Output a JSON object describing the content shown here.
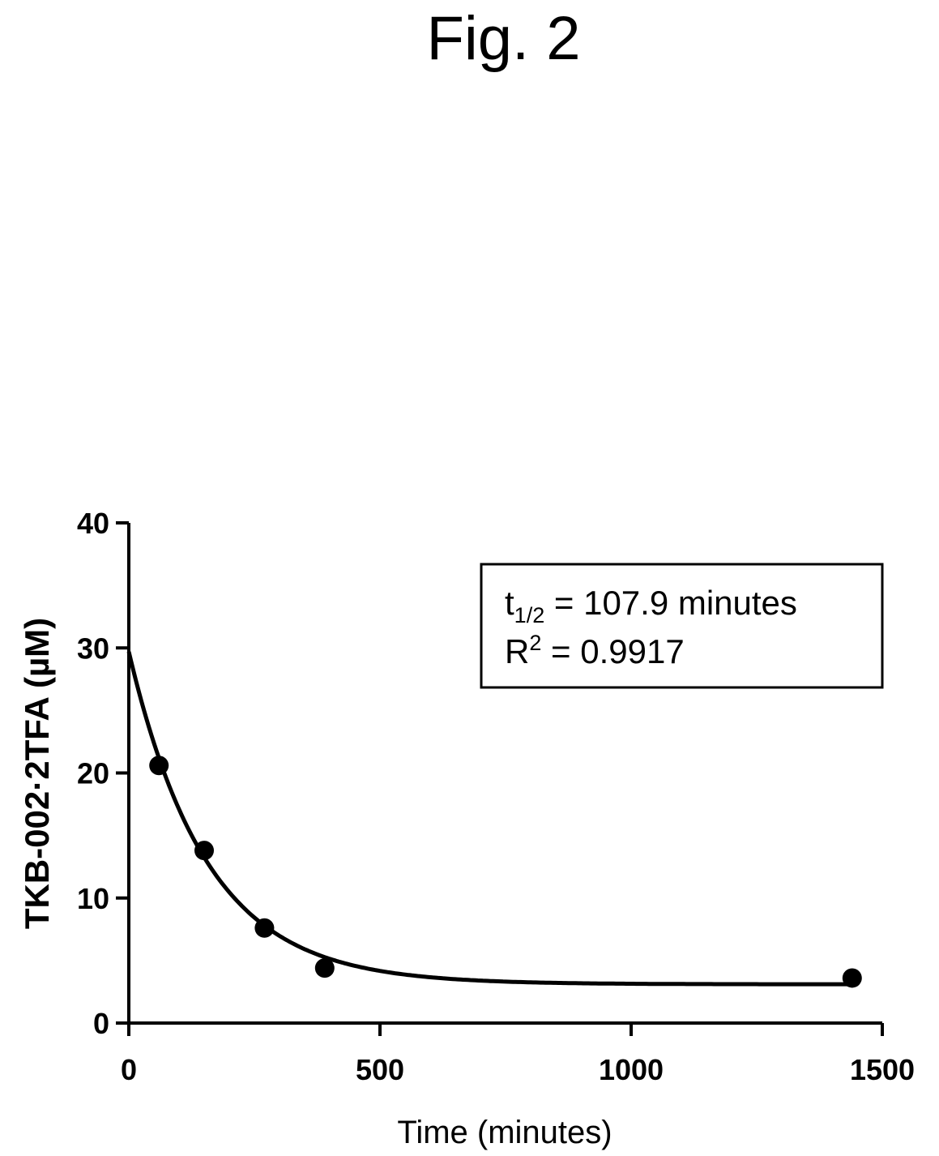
{
  "figure": {
    "title": "Fig. 2"
  },
  "chart_data": {
    "type": "scatter",
    "title": "Fig. 2",
    "xlabel": "Time (minutes)",
    "ylabel": "TKB-002·2TFA (µM)",
    "xlim": [
      0,
      1500
    ],
    "ylim": [
      0,
      40
    ],
    "xticks": [
      0,
      500,
      1000,
      1500
    ],
    "yticks": [
      0,
      10,
      20,
      30,
      40
    ],
    "grid": false,
    "series": [
      {
        "points": [
          {
            "x": 60,
            "y": 20.6
          },
          {
            "x": 150,
            "y": 13.8
          },
          {
            "x": 270,
            "y": 7.6
          },
          {
            "x": 390,
            "y": 4.4
          },
          {
            "x": 1440,
            "y": 3.6
          }
        ]
      }
    ],
    "fit": {
      "type": "one-phase exponential decay",
      "y0": 29.7,
      "plateau": 3.1,
      "half_life_minutes": 107.9
    },
    "annotation": {
      "half_life_label": "t",
      "half_life_subscript": "1/2",
      "half_life_text": " = 107.9 minutes",
      "r2_label": "R",
      "r2_superscript": "2",
      "r2_text": " = 0.9917"
    }
  }
}
